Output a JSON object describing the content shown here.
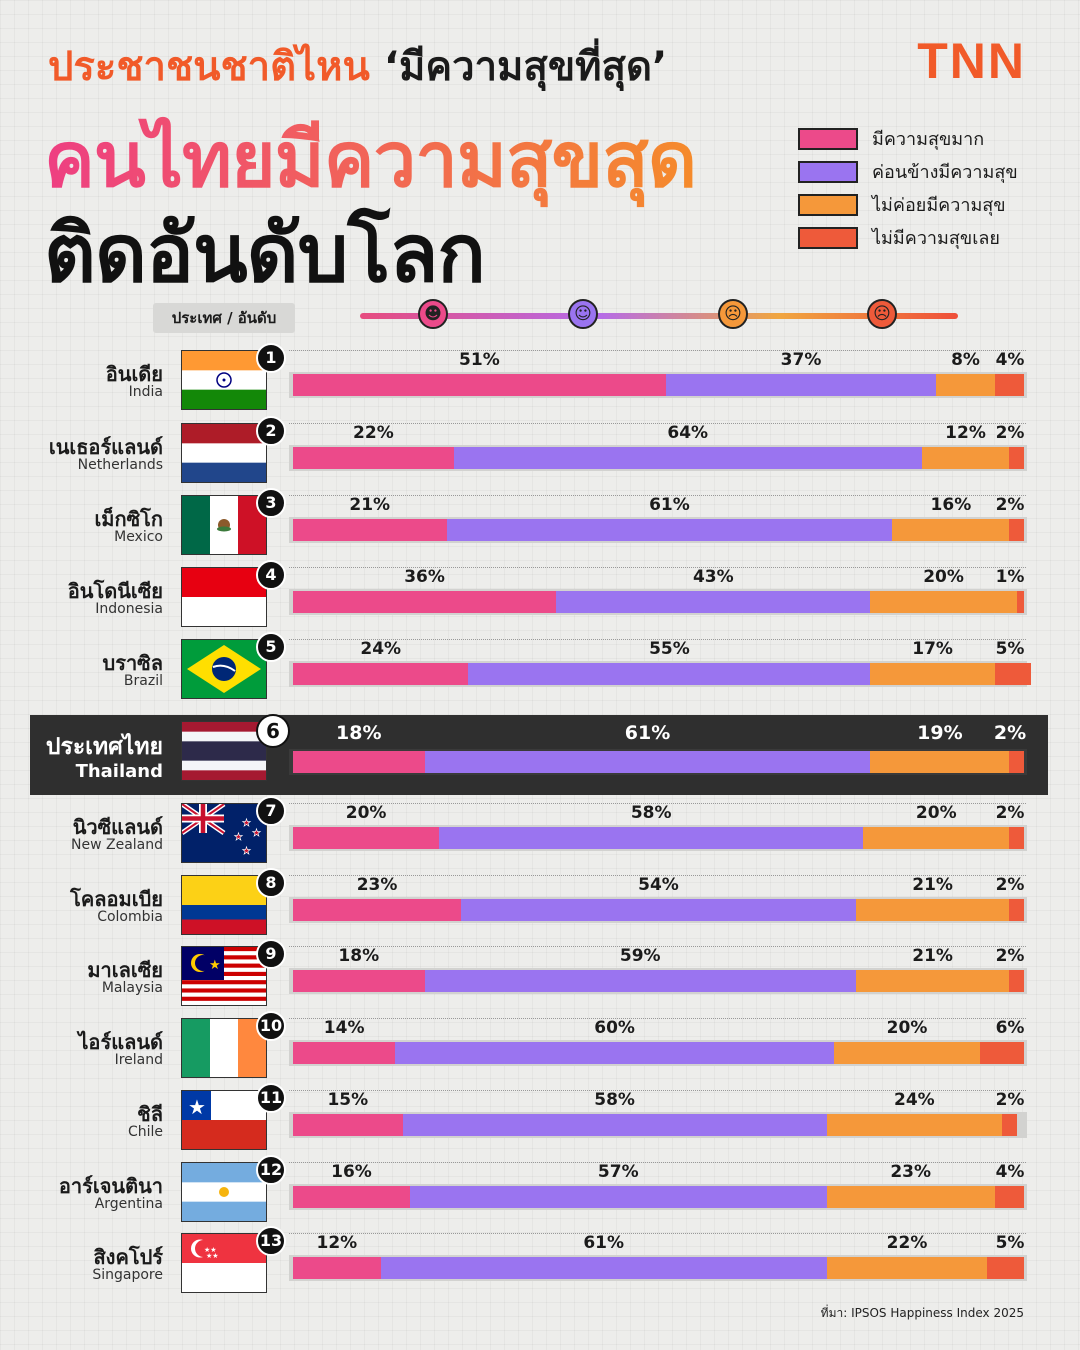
{
  "header": {
    "title_line1": "ประชาชนชาติไหน",
    "title_line1_quote": "‘มีความสุขที่สุด’",
    "title_line2": "คนไทยมีความสุขสุด",
    "title_line3": "ติดอันดับโลก",
    "logo": "TNN",
    "column_header": "ประเทศ / อันดับ"
  },
  "colors": {
    "very_happy": "#ec4a8a",
    "rather_happy": "#9a74f0",
    "not_very_happy": "#f5983a",
    "not_happy": "#ee5a3a"
  },
  "scale_icons": [
    "very-happy-face-icon",
    "happy-face-icon",
    "sad-face-icon",
    "angry-face-icon"
  ],
  "source": "ที่มา: IPSOS Happiness Index 2025",
  "chart_data": {
    "type": "bar",
    "stacked": true,
    "orientation": "horizontal",
    "title": "",
    "xlabel": "",
    "ylabel": "",
    "xlim": [
      0,
      100
    ],
    "legend_position": "top-right",
    "series": [
      {
        "name": "มีความสุขมาก",
        "color": "#ec4a8a",
        "values": [
          51,
          22,
          21,
          36,
          24,
          18,
          20,
          23,
          18,
          14,
          15,
          16,
          12
        ]
      },
      {
        "name": "ค่อนข้างมีความสุข",
        "color": "#9a74f0",
        "values": [
          37,
          64,
          61,
          43,
          55,
          61,
          58,
          54,
          59,
          60,
          58,
          57,
          61
        ]
      },
      {
        "name": "ไม่ค่อยมีความสุข",
        "color": "#f5983a",
        "values": [
          8,
          12,
          16,
          20,
          17,
          19,
          20,
          21,
          21,
          20,
          24,
          23,
          22
        ]
      },
      {
        "name": "ไม่มีความสุขเลย",
        "color": "#ee5a3a",
        "values": [
          4,
          2,
          2,
          1,
          5,
          2,
          2,
          2,
          2,
          6,
          2,
          4,
          5
        ]
      }
    ],
    "categories": [
      {
        "rank": "1",
        "name_th": "อินเดีย",
        "name_en": "India",
        "flag": "india-flag-icon"
      },
      {
        "rank": "2",
        "name_th": "เนเธอร์แลนด์",
        "name_en": "Netherlands",
        "flag": "netherlands-flag-icon"
      },
      {
        "rank": "3",
        "name_th": "เม็กซิโก",
        "name_en": "Mexico",
        "flag": "mexico-flag-icon"
      },
      {
        "rank": "4",
        "name_th": "อินโดนีเซีย",
        "name_en": "Indonesia",
        "flag": "indonesia-flag-icon"
      },
      {
        "rank": "5",
        "name_th": "บราซิล",
        "name_en": "Brazil",
        "flag": "brazil-flag-icon"
      },
      {
        "rank": "6",
        "name_th": "ประเทศไทย",
        "name_en": "Thailand",
        "flag": "thailand-flag-icon",
        "highlight": true
      },
      {
        "rank": "7",
        "name_th": "นิวซีแลนด์",
        "name_en": "New Zealand",
        "flag": "new-zealand-flag-icon"
      },
      {
        "rank": "8",
        "name_th": "โคลอมเบีย",
        "name_en": "Colombia",
        "flag": "colombia-flag-icon"
      },
      {
        "rank": "9",
        "name_th": "มาเลเซีย",
        "name_en": "Malaysia",
        "flag": "malaysia-flag-icon"
      },
      {
        "rank": "10",
        "name_th": "ไอร์แลนด์",
        "name_en": "Ireland",
        "flag": "ireland-flag-icon"
      },
      {
        "rank": "11",
        "name_th": "ชิลี",
        "name_en": "Chile",
        "flag": "chile-flag-icon"
      },
      {
        "rank": "12",
        "name_th": "อาร์เจนตินา",
        "name_en": "Argentina",
        "flag": "argentina-flag-icon"
      },
      {
        "rank": "13",
        "name_th": "สิงคโปร์",
        "name_en": "Singapore",
        "flag": "singapore-flag-icon"
      }
    ]
  }
}
